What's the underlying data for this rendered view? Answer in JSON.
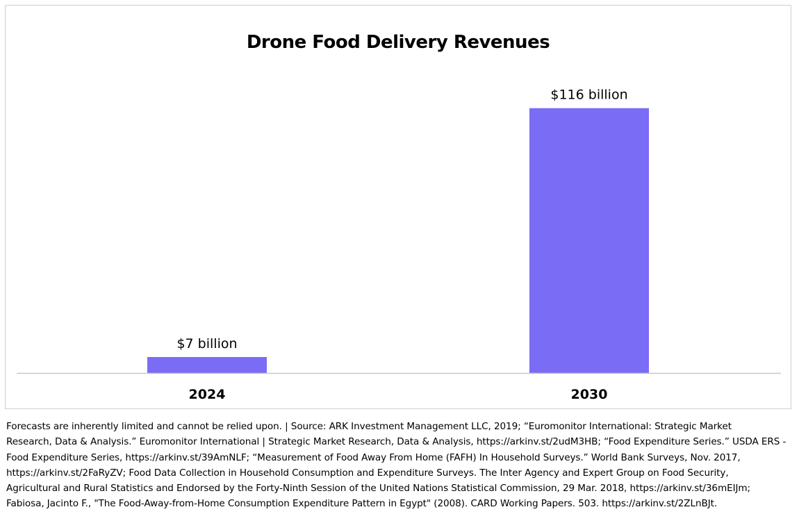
{
  "chart_data": {
    "type": "bar",
    "title": "Drone Food Delivery Revenues",
    "categories": [
      "2024",
      "2030"
    ],
    "values": [
      7,
      116
    ],
    "data_labels": [
      "$7 billion",
      "$116 billion"
    ],
    "ylim": [
      0,
      122
    ],
    "xlabel": "",
    "ylabel": "",
    "grid": false,
    "bar_color": "#7b6cf6",
    "axis_color": "#c8c8c8"
  },
  "footnote": {
    "lines": [
      "Forecasts are inherently limited and cannot be relied upon. |  Source: ARK Investment Management LLC, 2019; “Euromonitor International: Strategic Market",
      "Research, Data & Analysis.” Euromonitor International | Strategic Market Research, Data & Analysis, https://arkinv.st/2udM3HB; “Food Expenditure Series.” USDA ERS -",
      "Food Expenditure Series, https://arkinv.st/39AmNLF; “Measurement of  Food Away From Home (FAFH) In Household Surveys.” World Bank Surveys, Nov. 2017,",
      "https://arkinv.st/2FaRyZV; Food Data Collection in Household Consumption  and Expenditure Surveys. The Inter Agency and Expert Group on Food Security,",
      "Agricultural and Rural Statistics and Endorsed by the Forty-Ninth Session of the  United Nations Statistical Commission, 29 Mar. 2018, https://arkinv.st/36mEIJm;",
      "Fabiosa, Jacinto F., \"The Food-Away-from-Home Consumption Expenditure Pattern in Egypt\" (2008). CARD Working Papers. 503. https://arkinv.st/2ZLnBJt."
    ]
  }
}
